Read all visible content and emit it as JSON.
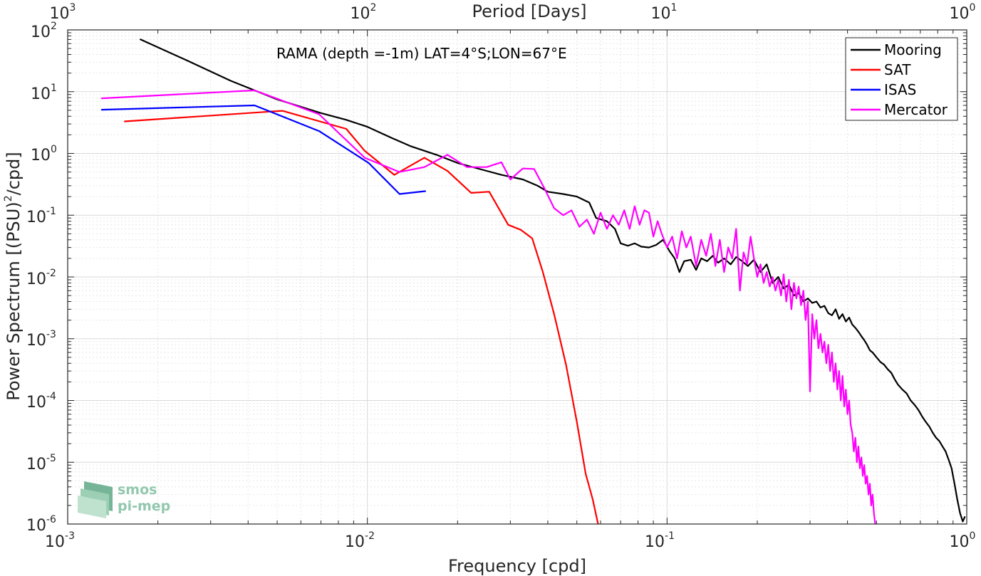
{
  "chart_data": {
    "type": "line",
    "title": "RAMA (depth =-1m) LAT=4°S;LON=67°E",
    "xlabel": "Frequency [cpd]",
    "ylabel_main": "Power Spectrum [(PSU)",
    "ylabel_sup": "2",
    "ylabel_tail": "/cpd]",
    "top_xlabel": "Period [Days]",
    "xscale": "log",
    "yscale": "log",
    "xlim": [
      0.001,
      1
    ],
    "ylim": [
      1e-06,
      100
    ],
    "grid": true,
    "legend_position": "top-right",
    "x_ticks": [
      {
        "base": "10",
        "exp": "-3"
      },
      {
        "base": "10",
        "exp": "-2"
      },
      {
        "base": "10",
        "exp": "-1"
      },
      {
        "base": "10",
        "exp": "0"
      }
    ],
    "y_ticks": [
      {
        "base": "10",
        "exp": "-6"
      },
      {
        "base": "10",
        "exp": "-5"
      },
      {
        "base": "10",
        "exp": "-4"
      },
      {
        "base": "10",
        "exp": "-3"
      },
      {
        "base": "10",
        "exp": "-2"
      },
      {
        "base": "10",
        "exp": "-1"
      },
      {
        "base": "10",
        "exp": "0"
      },
      {
        "base": "10",
        "exp": "1"
      },
      {
        "base": "10",
        "exp": "2"
      }
    ],
    "top_ticks": [
      {
        "base": "10",
        "exp": "3"
      },
      {
        "base": "10",
        "exp": "2"
      },
      {
        "base": "10",
        "exp": "1"
      },
      {
        "base": "10",
        "exp": "0"
      }
    ],
    "series": [
      {
        "name": "Mooring",
        "color": "#000000",
        "points": [
          [
            0.00175,
            70
          ],
          [
            0.0025,
            32
          ],
          [
            0.0035,
            15
          ],
          [
            0.005,
            7.5
          ],
          [
            0.007,
            4.5
          ],
          [
            0.0085,
            3.5
          ],
          [
            0.01,
            2.7
          ],
          [
            0.012,
            1.8
          ],
          [
            0.014,
            1.3
          ],
          [
            0.017,
            0.95
          ],
          [
            0.02,
            0.7
          ],
          [
            0.024,
            0.55
          ],
          [
            0.028,
            0.45
          ],
          [
            0.033,
            0.38
          ],
          [
            0.037,
            0.3
          ],
          [
            0.04,
            0.24
          ],
          [
            0.045,
            0.22
          ],
          [
            0.05,
            0.2
          ],
          [
            0.055,
            0.16
          ],
          [
            0.058,
            0.09
          ],
          [
            0.063,
            0.08
          ],
          [
            0.067,
            0.06
          ],
          [
            0.07,
            0.035
          ],
          [
            0.074,
            0.032
          ],
          [
            0.078,
            0.035
          ],
          [
            0.082,
            0.031
          ],
          [
            0.087,
            0.03
          ],
          [
            0.092,
            0.033
          ],
          [
            0.097,
            0.04
          ],
          [
            0.102,
            0.026
          ],
          [
            0.106,
            0.02
          ],
          [
            0.11,
            0.012
          ],
          [
            0.114,
            0.018
          ],
          [
            0.12,
            0.019
          ],
          [
            0.125,
            0.013
          ],
          [
            0.13,
            0.02
          ],
          [
            0.136,
            0.018
          ],
          [
            0.142,
            0.022
          ],
          [
            0.148,
            0.017
          ],
          [
            0.155,
            0.02
          ],
          [
            0.163,
            0.016
          ],
          [
            0.17,
            0.021
          ],
          [
            0.178,
            0.018
          ],
          [
            0.186,
            0.015
          ],
          [
            0.195,
            0.019
          ],
          [
            0.205,
            0.012
          ],
          [
            0.215,
            0.016
          ],
          [
            0.225,
            0.008
          ],
          [
            0.235,
            0.01
          ],
          [
            0.245,
            0.0065
          ],
          [
            0.255,
            0.0075
          ],
          [
            0.265,
            0.005
          ],
          [
            0.275,
            0.0055
          ],
          [
            0.285,
            0.004
          ],
          [
            0.295,
            0.0045
          ],
          [
            0.305,
            0.0038
          ],
          [
            0.315,
            0.004
          ],
          [
            0.325,
            0.0032
          ],
          [
            0.335,
            0.0034
          ],
          [
            0.345,
            0.0026
          ],
          [
            0.355,
            0.0024
          ],
          [
            0.365,
            0.003
          ],
          [
            0.375,
            0.0021
          ],
          [
            0.385,
            0.0025
          ],
          [
            0.395,
            0.0019
          ],
          [
            0.405,
            0.0022
          ],
          [
            0.415,
            0.0017
          ],
          [
            0.425,
            0.0015
          ],
          [
            0.435,
            0.0013
          ],
          [
            0.445,
            0.0011
          ],
          [
            0.455,
            0.00095
          ],
          [
            0.465,
            0.0008
          ],
          [
            0.475,
            0.00065
          ],
          [
            0.485,
            0.0006
          ],
          [
            0.5,
            0.0005
          ],
          [
            0.515,
            0.00042
          ],
          [
            0.53,
            0.00038
          ],
          [
            0.545,
            0.00032
          ],
          [
            0.56,
            0.00028
          ],
          [
            0.575,
            0.00022
          ],
          [
            0.59,
            0.00018
          ],
          [
            0.61,
            0.00015
          ],
          [
            0.63,
            0.00013
          ],
          [
            0.65,
            0.0001
          ],
          [
            0.67,
            8.5e-05
          ],
          [
            0.69,
            7e-05
          ],
          [
            0.71,
            5.5e-05
          ],
          [
            0.73,
            4.5e-05
          ],
          [
            0.75,
            3.8e-05
          ],
          [
            0.77,
            3e-05
          ],
          [
            0.79,
            2.5e-05
          ],
          [
            0.81,
            2.2e-05
          ],
          [
            0.83,
            1.8e-05
          ],
          [
            0.85,
            1.5e-05
          ],
          [
            0.87,
            1.1e-05
          ],
          [
            0.89,
            8e-06
          ],
          [
            0.91,
            4.5e-06
          ],
          [
            0.93,
            2.5e-06
          ],
          [
            0.95,
            1.5e-06
          ],
          [
            0.97,
            1.1e-06
          ],
          [
            0.985,
            1.3e-06
          ]
        ]
      },
      {
        "name": "SAT",
        "color": "#ff0000",
        "points": [
          [
            0.00155,
            3.3
          ],
          [
            0.0052,
            4.9
          ],
          [
            0.0085,
            2.5
          ],
          [
            0.0098,
            1.1
          ],
          [
            0.0123,
            0.45
          ],
          [
            0.0155,
            0.85
          ],
          [
            0.0185,
            0.52
          ],
          [
            0.0222,
            0.23
          ],
          [
            0.0255,
            0.24
          ],
          [
            0.0295,
            0.07
          ],
          [
            0.0325,
            0.058
          ],
          [
            0.0355,
            0.042
          ],
          [
            0.0385,
            0.012
          ],
          [
            0.042,
            0.0025
          ],
          [
            0.046,
            0.00038
          ],
          [
            0.05,
            4.5e-05
          ],
          [
            0.0535,
            6.5e-06
          ],
          [
            0.0565,
            2.5e-06
          ],
          [
            0.059,
            9.5e-07
          ]
        ]
      },
      {
        "name": "ISAS",
        "color": "#0000ff",
        "points": [
          [
            0.0013,
            5.1
          ],
          [
            0.0042,
            6.0
          ],
          [
            0.0069,
            2.3
          ],
          [
            0.0101,
            0.7
          ],
          [
            0.0128,
            0.22
          ],
          [
            0.0156,
            0.245
          ]
        ]
      },
      {
        "name": "Mercator",
        "color": "#ff00ff",
        "points": [
          [
            0.0013,
            7.8
          ],
          [
            0.0042,
            10.5
          ],
          [
            0.0069,
            4.3
          ],
          [
            0.0098,
            0.85
          ],
          [
            0.0128,
            0.5
          ],
          [
            0.0155,
            0.6
          ],
          [
            0.0185,
            0.95
          ],
          [
            0.0215,
            0.6
          ],
          [
            0.025,
            0.6
          ],
          [
            0.028,
            0.72
          ],
          [
            0.03,
            0.38
          ],
          [
            0.033,
            0.57
          ],
          [
            0.036,
            0.56
          ],
          [
            0.039,
            0.27
          ],
          [
            0.042,
            0.13
          ],
          [
            0.045,
            0.1
          ],
          [
            0.048,
            0.12
          ],
          [
            0.051,
            0.065
          ],
          [
            0.054,
            0.085
          ],
          [
            0.057,
            0.05
          ],
          [
            0.06,
            0.11
          ],
          [
            0.063,
            0.06
          ],
          [
            0.066,
            0.1
          ],
          [
            0.069,
            0.07
          ],
          [
            0.072,
            0.12
          ],
          [
            0.075,
            0.06
          ],
          [
            0.078,
            0.14
          ],
          [
            0.081,
            0.07
          ],
          [
            0.084,
            0.12
          ],
          [
            0.087,
            0.11
          ],
          [
            0.09,
            0.045
          ],
          [
            0.093,
            0.08
          ],
          [
            0.096,
            0.05
          ],
          [
            0.1,
            0.03
          ],
          [
            0.104,
            0.045
          ],
          [
            0.108,
            0.02
          ],
          [
            0.112,
            0.055
          ],
          [
            0.116,
            0.03
          ],
          [
            0.12,
            0.045
          ],
          [
            0.125,
            0.015
          ],
          [
            0.13,
            0.04
          ],
          [
            0.135,
            0.022
          ],
          [
            0.14,
            0.05
          ],
          [
            0.145,
            0.015
          ],
          [
            0.15,
            0.04
          ],
          [
            0.155,
            0.012
          ],
          [
            0.16,
            0.03
          ],
          [
            0.165,
            0.02
          ],
          [
            0.17,
            0.06
          ],
          [
            0.175,
            0.006
          ],
          [
            0.18,
            0.025
          ],
          [
            0.185,
            0.016
          ],
          [
            0.19,
            0.045
          ],
          [
            0.195,
            0.02
          ],
          [
            0.2,
            0.01
          ],
          [
            0.205,
            0.016
          ],
          [
            0.21,
            0.008
          ],
          [
            0.215,
            0.012
          ],
          [
            0.22,
            0.007
          ],
          [
            0.225,
            0.01
          ],
          [
            0.23,
            0.006
          ],
          [
            0.235,
            0.009
          ],
          [
            0.24,
            0.005
          ],
          [
            0.245,
            0.011
          ],
          [
            0.25,
            0.004
          ],
          [
            0.255,
            0.009
          ],
          [
            0.26,
            0.003
          ],
          [
            0.265,
            0.008
          ],
          [
            0.27,
            0.0045
          ],
          [
            0.275,
            0.007
          ],
          [
            0.28,
            0.0035
          ],
          [
            0.285,
            0.006
          ],
          [
            0.29,
            0.002
          ],
          [
            0.295,
            0.004
          ],
          [
            0.3,
            0.00014
          ],
          [
            0.305,
            0.0025
          ],
          [
            0.31,
            0.001
          ],
          [
            0.315,
            0.002
          ],
          [
            0.32,
            0.0007
          ],
          [
            0.325,
            0.0012
          ],
          [
            0.33,
            0.0006
          ],
          [
            0.335,
            0.0009
          ],
          [
            0.34,
            0.0004
          ],
          [
            0.345,
            0.0008
          ],
          [
            0.35,
            0.0003
          ],
          [
            0.355,
            0.0006
          ],
          [
            0.36,
            0.0002
          ],
          [
            0.365,
            0.0004
          ],
          [
            0.37,
            0.00015
          ],
          [
            0.375,
            0.0003
          ],
          [
            0.38,
            0.0001
          ],
          [
            0.385,
            0.00025
          ],
          [
            0.39,
            8e-05
          ],
          [
            0.395,
            0.00015
          ],
          [
            0.4,
            6e-05
          ],
          [
            0.405,
            0.0001
          ],
          [
            0.41,
            4e-05
          ],
          [
            0.415,
            3e-05
          ],
          [
            0.42,
            1.5e-05
          ],
          [
            0.425,
            2.5e-05
          ],
          [
            0.43,
            1e-05
          ],
          [
            0.435,
            1.8e-05
          ],
          [
            0.44,
            8e-06
          ],
          [
            0.445,
            1.2e-05
          ],
          [
            0.45,
            6e-06
          ],
          [
            0.455,
            9e-06
          ],
          [
            0.46,
            4.5e-06
          ],
          [
            0.465,
            6e-06
          ],
          [
            0.47,
            3e-06
          ],
          [
            0.475,
            4.5e-06
          ],
          [
            0.48,
            2e-06
          ],
          [
            0.485,
            3e-06
          ],
          [
            0.49,
            1.5e-06
          ],
          [
            0.495,
            1e-06
          ]
        ]
      }
    ]
  },
  "logo": {
    "line1": "smos",
    "line2": "pi-mep"
  }
}
